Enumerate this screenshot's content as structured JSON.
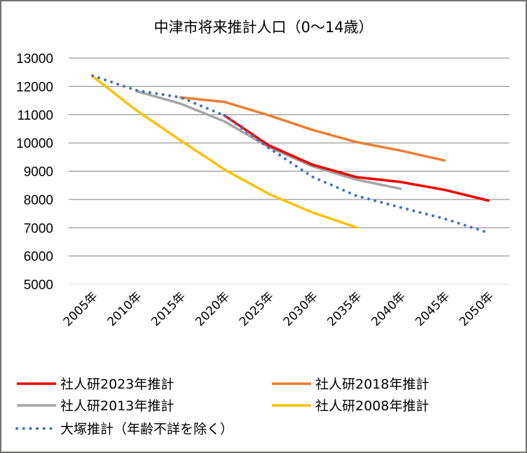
{
  "chart_data": {
    "type": "line",
    "title": "中津市将来推計人口（0〜14歳）",
    "xlabel": "",
    "ylabel": "",
    "categories": [
      "2005年",
      "2010年",
      "2015年",
      "2020年",
      "2025年",
      "2030年",
      "2035年",
      "2040年",
      "2045年",
      "2050年"
    ],
    "yticks": [
      "13000",
      "12000",
      "11000",
      "10000",
      "9000",
      "8000",
      "7000",
      "6000",
      "5000"
    ],
    "ylim": [
      5000,
      13000
    ],
    "grid": true,
    "legend_position": "bottom",
    "series": [
      {
        "name": "社人研2023年推計",
        "color": "#EE0000",
        "style": "solid",
        "values": [
          null,
          null,
          null,
          10970,
          9920,
          9230,
          8790,
          8620,
          8340,
          7960
        ]
      },
      {
        "name": "社人研2018年推計",
        "color": "#ED7D31",
        "style": "solid",
        "values": [
          null,
          null,
          11610,
          11450,
          10980,
          10460,
          10030,
          9730,
          9380,
          null
        ]
      },
      {
        "name": "社人研2013年推計",
        "color": "#A5A5A5",
        "style": "solid",
        "values": [
          null,
          11830,
          11390,
          10760,
          9860,
          9170,
          8700,
          8380,
          null,
          null
        ]
      },
      {
        "name": "社人研2008年推計",
        "color": "#FFC000",
        "style": "solid",
        "values": [
          12360,
          11150,
          10090,
          9060,
          8200,
          7540,
          7010,
          null,
          null,
          null
        ]
      },
      {
        "name": "大塚推計（年齢不詳を除く）",
        "color": "#4472C4",
        "style": "dotted",
        "values": [
          12380,
          11860,
          11610,
          10970,
          9830,
          8800,
          8130,
          7720,
          7320,
          6820
        ]
      }
    ]
  }
}
